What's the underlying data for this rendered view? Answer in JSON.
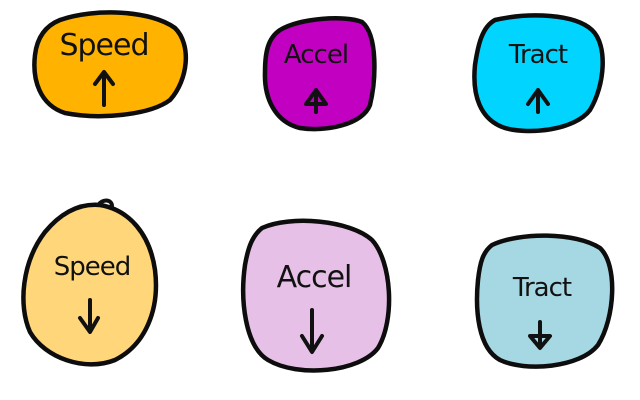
{
  "buttons": [
    {
      "id": "speed-up",
      "label": "Speed",
      "direction": "up",
      "color": "#FFB300"
    },
    {
      "id": "accel-up",
      "label": "Accel",
      "direction": "up",
      "color": "#C200C2"
    },
    {
      "id": "tract-up",
      "label": "Tract",
      "direction": "up",
      "color": "#00D4FF"
    },
    {
      "id": "speed-down",
      "label": "Speed",
      "direction": "down",
      "color": "#FFD67A"
    },
    {
      "id": "accel-down",
      "label": "Accel",
      "direction": "down",
      "color": "#E6C0E6"
    },
    {
      "id": "tract-down",
      "label": "Tract",
      "direction": "down",
      "color": "#A6D8E4"
    }
  ],
  "icons": {
    "up": "arrow-up-icon",
    "down": "arrow-down-icon"
  }
}
